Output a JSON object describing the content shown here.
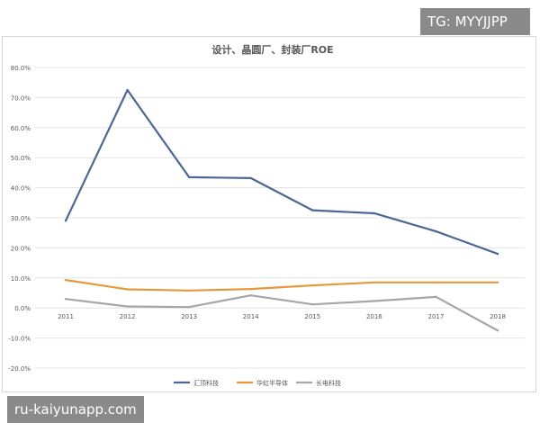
{
  "watermarks": {
    "top_right": "TG: MYYJJPP",
    "bottom_left": "ru-kaiyunapp.com"
  },
  "chart_data": {
    "type": "line",
    "title": "设计、晶圆厂、封装厂ROE",
    "xlabel": "",
    "ylabel": "",
    "categories": [
      "2011",
      "2012",
      "2013",
      "2014",
      "2015",
      "2016",
      "2017",
      "2018"
    ],
    "ylim": [
      -20,
      80
    ],
    "yticks": [
      "80.0%",
      "70.0%",
      "60.0%",
      "50.0%",
      "40.0%",
      "30.0%",
      "20.0%",
      "10.0%",
      "0.0%",
      "-10.0%",
      "-20.0%"
    ],
    "grid": true,
    "legend_position": "bottom",
    "series": [
      {
        "name": "汇顶科技",
        "color": "#4a6797",
        "values": [
          29.0,
          72.5,
          43.5,
          43.2,
          32.5,
          31.5,
          25.5,
          18.0
        ]
      },
      {
        "name": "华虹半导体",
        "color": "#e49a3c",
        "values": [
          9.3,
          6.2,
          5.8,
          6.3,
          7.5,
          8.5,
          8.5,
          8.5
        ]
      },
      {
        "name": "长电科技",
        "color": "#a6a6a6",
        "values": [
          3.0,
          0.5,
          0.3,
          4.2,
          1.2,
          2.3,
          3.7,
          -7.5
        ]
      }
    ]
  }
}
